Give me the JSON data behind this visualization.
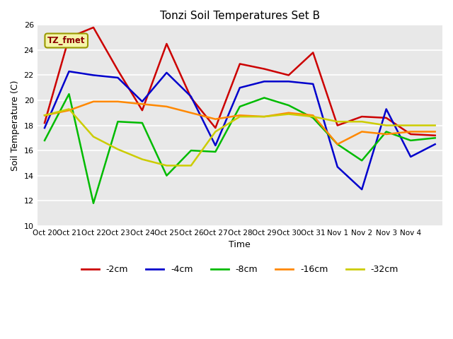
{
  "title": "Tonzi Soil Temperatures Set B",
  "xlabel": "Time",
  "ylabel": "Soil Temperature (C)",
  "ylim": [
    10,
    26
  ],
  "background_color": "#ffffff",
  "plot_bg_color": "#e8e8e8",
  "legend_label": "TZ_fmet",
  "x_tick_labels": [
    "Oct 20",
    "Oct 21",
    "Oct 22",
    "Oct 23",
    "Oct 24",
    "Oct 25",
    "Oct 26",
    "Oct 27",
    "Oct 28",
    "Oct 29",
    "Oct 30",
    "Oct 31",
    "Nov 1",
    "Nov 2",
    "Nov 3",
    "Nov 4"
  ],
  "series": {
    "-2cm": {
      "color": "#cc0000",
      "values": [
        18.2,
        25.0,
        25.8,
        22.4,
        19.2,
        24.5,
        20.2,
        17.8,
        22.9,
        22.5,
        22.0,
        23.8,
        18.0,
        18.7,
        18.6,
        17.3,
        17.2
      ]
    },
    "-4cm": {
      "color": "#0000cc",
      "values": [
        17.8,
        22.3,
        22.0,
        21.8,
        19.9,
        22.2,
        20.3,
        16.4,
        21.0,
        21.5,
        21.5,
        21.3,
        14.7,
        12.9,
        19.3,
        15.5,
        16.5
      ]
    },
    "-8cm": {
      "color": "#00bb00",
      "values": [
        16.8,
        20.5,
        11.8,
        18.3,
        18.2,
        14.0,
        16.0,
        15.9,
        19.5,
        20.2,
        19.6,
        18.6,
        16.5,
        15.2,
        17.5,
        16.8,
        17.0
      ]
    },
    "-16cm": {
      "color": "#ff8800",
      "values": [
        18.8,
        19.2,
        19.9,
        19.9,
        19.7,
        19.5,
        19.0,
        18.5,
        18.8,
        18.7,
        19.0,
        18.8,
        16.5,
        17.5,
        17.3,
        17.5,
        17.5
      ]
    },
    "-32cm": {
      "color": "#cccc00",
      "values": [
        18.8,
        19.3,
        17.1,
        16.1,
        15.3,
        14.8,
        14.8,
        17.5,
        18.7,
        18.7,
        18.9,
        18.7,
        18.3,
        18.3,
        18.0,
        18.0,
        18.0
      ]
    }
  },
  "num_points": 17
}
